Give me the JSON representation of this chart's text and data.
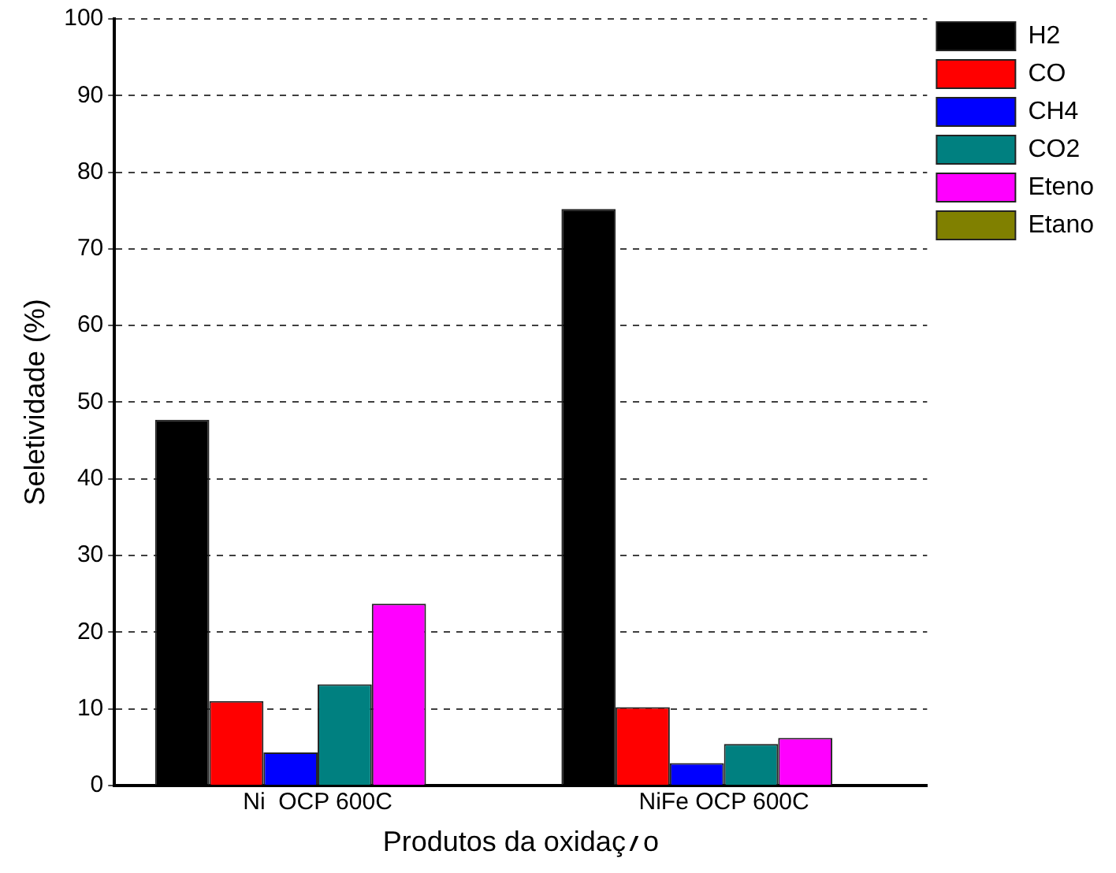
{
  "chart_data": {
    "type": "bar",
    "xlabel": "Produtos da oxidaç؍o",
    "ylabel": "Seletividade (%)",
    "categories": [
      "Ni  OCP 600C",
      "NiFe OCP 600C"
    ],
    "series": [
      {
        "name": "H2",
        "color": "#000000",
        "values": [
          47.7,
          75.2
        ]
      },
      {
        "name": "CO",
        "color": "#ff0000",
        "values": [
          11.0,
          10.2
        ]
      },
      {
        "name": "CH4",
        "color": "#0000ff",
        "values": [
          4.3,
          2.9
        ]
      },
      {
        "name": "CO2",
        "color": "#008080",
        "values": [
          13.2,
          5.4
        ]
      },
      {
        "name": "Eteno",
        "color": "#ff00ff",
        "values": [
          23.7,
          6.2
        ]
      },
      {
        "name": "Etano",
        "color": "#808000",
        "values": [
          0,
          0
        ]
      }
    ],
    "ylim": [
      0,
      100
    ],
    "yticks": [
      0,
      10,
      20,
      30,
      40,
      50,
      60,
      70,
      80,
      90,
      100
    ],
    "grid": "y",
    "legend": "top right"
  }
}
